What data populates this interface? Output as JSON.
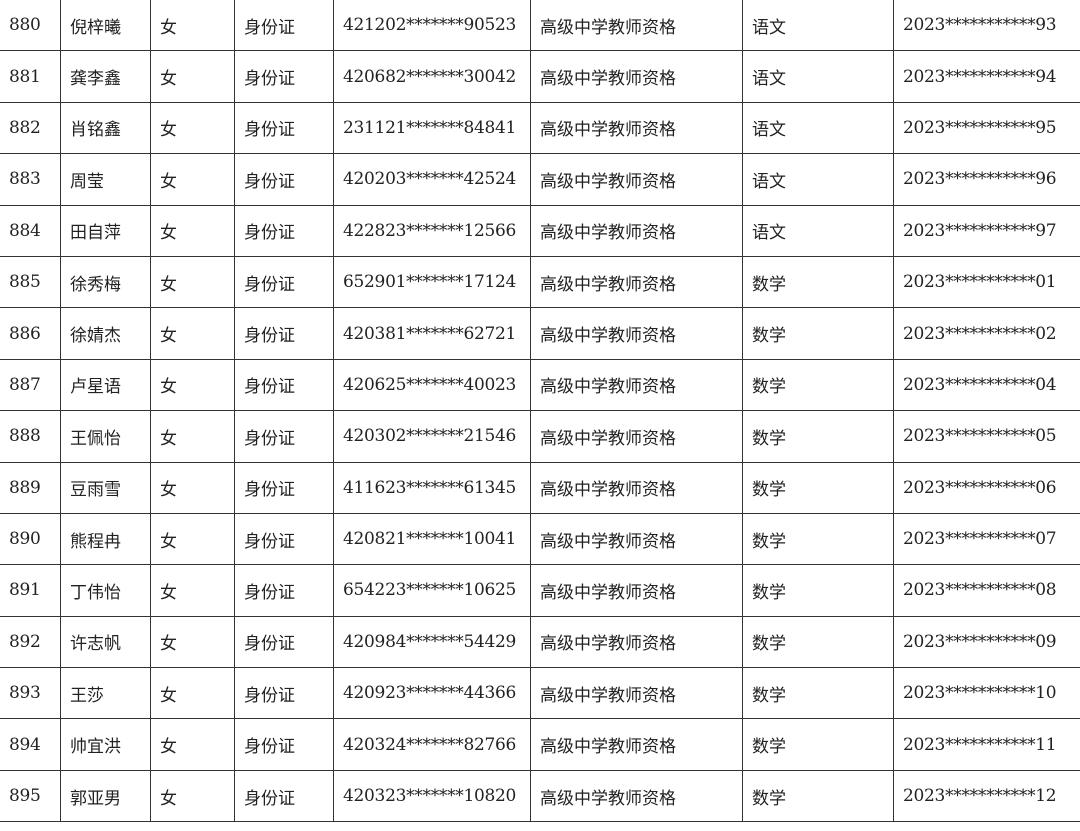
{
  "rows": [
    {
      "no": "880",
      "name": "倪梓曦",
      "gender": "女",
      "id_type": "身份证",
      "id_no": "421202*******90523",
      "qualification": "高级中学教师资格",
      "subject": "语文",
      "cert_no": "2023***********93"
    },
    {
      "no": "881",
      "name": "龚李鑫",
      "gender": "女",
      "id_type": "身份证",
      "id_no": "420682*******30042",
      "qualification": "高级中学教师资格",
      "subject": "语文",
      "cert_no": "2023***********94"
    },
    {
      "no": "882",
      "name": "肖铭鑫",
      "gender": "女",
      "id_type": "身份证",
      "id_no": "231121*******84841",
      "qualification": "高级中学教师资格",
      "subject": "语文",
      "cert_no": "2023***********95"
    },
    {
      "no": "883",
      "name": "周莹",
      "gender": "女",
      "id_type": "身份证",
      "id_no": "420203*******42524",
      "qualification": "高级中学教师资格",
      "subject": "语文",
      "cert_no": "2023***********96"
    },
    {
      "no": "884",
      "name": "田自萍",
      "gender": "女",
      "id_type": "身份证",
      "id_no": "422823*******12566",
      "qualification": "高级中学教师资格",
      "subject": "语文",
      "cert_no": "2023***********97"
    },
    {
      "no": "885",
      "name": "徐秀梅",
      "gender": "女",
      "id_type": "身份证",
      "id_no": "652901*******17124",
      "qualification": "高级中学教师资格",
      "subject": "数学",
      "cert_no": "2023***********01"
    },
    {
      "no": "886",
      "name": "徐婧杰",
      "gender": "女",
      "id_type": "身份证",
      "id_no": "420381*******62721",
      "qualification": "高级中学教师资格",
      "subject": "数学",
      "cert_no": "2023***********02"
    },
    {
      "no": "887",
      "name": "卢星语",
      "gender": "女",
      "id_type": "身份证",
      "id_no": "420625*******40023",
      "qualification": "高级中学教师资格",
      "subject": "数学",
      "cert_no": "2023***********04"
    },
    {
      "no": "888",
      "name": "王佩怡",
      "gender": "女",
      "id_type": "身份证",
      "id_no": "420302*******21546",
      "qualification": "高级中学教师资格",
      "subject": "数学",
      "cert_no": "2023***********05"
    },
    {
      "no": "889",
      "name": "豆雨雪",
      "gender": "女",
      "id_type": "身份证",
      "id_no": "411623*******61345",
      "qualification": "高级中学教师资格",
      "subject": "数学",
      "cert_no": "2023***********06"
    },
    {
      "no": "890",
      "name": "熊程冉",
      "gender": "女",
      "id_type": "身份证",
      "id_no": "420821*******10041",
      "qualification": "高级中学教师资格",
      "subject": "数学",
      "cert_no": "2023***********07"
    },
    {
      "no": "891",
      "name": "丁伟怡",
      "gender": "女",
      "id_type": "身份证",
      "id_no": "654223*******10625",
      "qualification": "高级中学教师资格",
      "subject": "数学",
      "cert_no": "2023***********08"
    },
    {
      "no": "892",
      "name": "许志帆",
      "gender": "女",
      "id_type": "身份证",
      "id_no": "420984*******54429",
      "qualification": "高级中学教师资格",
      "subject": "数学",
      "cert_no": "2023***********09"
    },
    {
      "no": "893",
      "name": "王莎",
      "gender": "女",
      "id_type": "身份证",
      "id_no": "420923*******44366",
      "qualification": "高级中学教师资格",
      "subject": "数学",
      "cert_no": "2023***********10"
    },
    {
      "no": "894",
      "name": "帅宜洪",
      "gender": "女",
      "id_type": "身份证",
      "id_no": "420324*******82766",
      "qualification": "高级中学教师资格",
      "subject": "数学",
      "cert_no": "2023***********11"
    },
    {
      "no": "895",
      "name": "郭亚男",
      "gender": "女",
      "id_type": "身份证",
      "id_no": "420323*******10820",
      "qualification": "高级中学教师资格",
      "subject": "数学",
      "cert_no": "2023***********12"
    }
  ]
}
